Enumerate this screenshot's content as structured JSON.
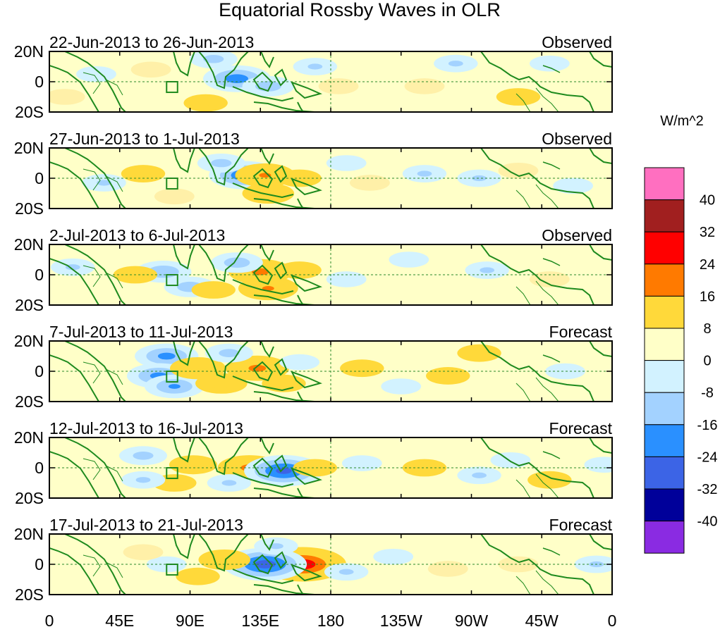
{
  "chart_data": {
    "type": "heatmap",
    "title": "Equatorial Rossby Waves in OLR",
    "x_tick_labels": [
      "0",
      "45E",
      "90E",
      "135E",
      "180",
      "135W",
      "90W",
      "45W",
      "0"
    ],
    "y_tick_labels": [
      "20N",
      "0",
      "20S"
    ],
    "xlim_degrees_east": [
      0,
      360
    ],
    "ylim_degrees_north": [
      -20,
      20
    ],
    "colorbar": {
      "unit": "W/m^2",
      "labels": [
        "40",
        "32",
        "24",
        "16",
        "8",
        "0",
        "-8",
        "-16",
        "-24",
        "-32",
        "-40"
      ],
      "bin_colors": [
        "#ff6fc0",
        "#a11f1f",
        "#ff0000",
        "#ff7a00",
        "#ffd93a",
        "#ffffc8",
        "#d2f2ff",
        "#a3d2ff",
        "#2a90ff",
        "#3c64e6",
        "#00009a",
        "#8a2be2"
      ]
    },
    "panels": [
      {
        "date_range": "22-Jun-2013 to 26-Jun-2013",
        "kind": "Observed",
        "anomalies": [
          {
            "lon": 120,
            "lat": 2,
            "value": -20
          },
          {
            "lon": 140,
            "lat": -3,
            "value": -12
          },
          {
            "lon": 105,
            "lat": 15,
            "value": -10
          },
          {
            "lon": 100,
            "lat": -14,
            "value": 8
          },
          {
            "lon": 170,
            "lat": 10,
            "value": -8
          },
          {
            "lon": 185,
            "lat": -3,
            "value": 6
          },
          {
            "lon": 65,
            "lat": 8,
            "value": 6
          },
          {
            "lon": 30,
            "lat": 5,
            "value": -6
          },
          {
            "lon": 240,
            "lat": -3,
            "value": 6
          },
          {
            "lon": 260,
            "lat": 12,
            "value": -8
          },
          {
            "lon": 300,
            "lat": -10,
            "value": 8
          },
          {
            "lon": 320,
            "lat": 12,
            "value": -6
          },
          {
            "lon": 10,
            "lat": -10,
            "value": 6
          }
        ]
      },
      {
        "date_range": "27-Jun-2013 to 1-Jul-2013",
        "kind": "Observed",
        "anomalies": [
          {
            "lon": 125,
            "lat": 2,
            "value": -22
          },
          {
            "lon": 138,
            "lat": 2,
            "value": 16
          },
          {
            "lon": 140,
            "lat": -10,
            "value": 12
          },
          {
            "lon": 110,
            "lat": 10,
            "value": -10
          },
          {
            "lon": 160,
            "lat": 0,
            "value": 8
          },
          {
            "lon": 60,
            "lat": 3,
            "value": 8
          },
          {
            "lon": 35,
            "lat": -3,
            "value": -8
          },
          {
            "lon": 190,
            "lat": 10,
            "value": -6
          },
          {
            "lon": 205,
            "lat": -3,
            "value": 6
          },
          {
            "lon": 240,
            "lat": 3,
            "value": -8
          },
          {
            "lon": 275,
            "lat": 0,
            "value": -8
          },
          {
            "lon": 300,
            "lat": 5,
            "value": 6
          },
          {
            "lon": 335,
            "lat": -5,
            "value": -6
          },
          {
            "lon": 80,
            "lat": -12,
            "value": 6
          }
        ]
      },
      {
        "date_range": "2-Jul-2013 to 6-Jul-2013",
        "kind": "Observed",
        "anomalies": [
          {
            "lon": 135,
            "lat": 2,
            "value": 18
          },
          {
            "lon": 140,
            "lat": -9,
            "value": 16
          },
          {
            "lon": 120,
            "lat": 8,
            "value": -12
          },
          {
            "lon": 73,
            "lat": 2,
            "value": -14
          },
          {
            "lon": 90,
            "lat": -8,
            "value": -12
          },
          {
            "lon": 55,
            "lat": 0,
            "value": 8
          },
          {
            "lon": 105,
            "lat": -10,
            "value": 8
          },
          {
            "lon": 160,
            "lat": 3,
            "value": 8
          },
          {
            "lon": 190,
            "lat": -3,
            "value": -6
          },
          {
            "lon": 230,
            "lat": 10,
            "value": -6
          },
          {
            "lon": 280,
            "lat": 3,
            "value": -8
          },
          {
            "lon": 320,
            "lat": -3,
            "value": 6
          },
          {
            "lon": 15,
            "lat": 5,
            "value": -8
          }
        ]
      },
      {
        "date_range": "7-Jul-2013 to 11-Jul-2013",
        "kind": "Forecast",
        "anomalies": [
          {
            "lon": 133,
            "lat": 2,
            "value": 18
          },
          {
            "lon": 75,
            "lat": 10,
            "value": -18
          },
          {
            "lon": 70,
            "lat": -3,
            "value": -18
          },
          {
            "lon": 80,
            "lat": -10,
            "value": -16
          },
          {
            "lon": 95,
            "lat": 2,
            "value": 14
          },
          {
            "lon": 110,
            "lat": -8,
            "value": 12
          },
          {
            "lon": 115,
            "lat": 12,
            "value": -10
          },
          {
            "lon": 150,
            "lat": -8,
            "value": 8
          },
          {
            "lon": 160,
            "lat": 6,
            "value": -6
          },
          {
            "lon": 200,
            "lat": 2,
            "value": 8
          },
          {
            "lon": 225,
            "lat": -10,
            "value": -6
          },
          {
            "lon": 255,
            "lat": -3,
            "value": 8
          },
          {
            "lon": 275,
            "lat": 12,
            "value": 8
          },
          {
            "lon": 330,
            "lat": 0,
            "value": -6
          }
        ]
      },
      {
        "date_range": "12-Jul-2013 to 16-Jul-2013",
        "kind": "Forecast",
        "anomalies": [
          {
            "lon": 128,
            "lat": 0,
            "value": 18
          },
          {
            "lon": 150,
            "lat": -2,
            "value": -26
          },
          {
            "lon": 92,
            "lat": 2,
            "value": 10
          },
          {
            "lon": 80,
            "lat": -10,
            "value": 8
          },
          {
            "lon": 60,
            "lat": 8,
            "value": -10
          },
          {
            "lon": 60,
            "lat": -8,
            "value": -8
          },
          {
            "lon": 115,
            "lat": -10,
            "value": -8
          },
          {
            "lon": 170,
            "lat": 0,
            "value": 8
          },
          {
            "lon": 200,
            "lat": 3,
            "value": -6
          },
          {
            "lon": 240,
            "lat": 0,
            "value": 8
          },
          {
            "lon": 275,
            "lat": -5,
            "value": -8
          },
          {
            "lon": 295,
            "lat": 5,
            "value": -6
          },
          {
            "lon": 320,
            "lat": -8,
            "value": 8
          },
          {
            "lon": 355,
            "lat": 2,
            "value": -6
          }
        ]
      },
      {
        "date_range": "17-Jul-2013 to 21-Jul-2013",
        "kind": "Forecast",
        "anomalies": [
          {
            "lon": 162,
            "lat": 0,
            "value": 30
          },
          {
            "lon": 138,
            "lat": 0,
            "value": -28
          },
          {
            "lon": 112,
            "lat": 3,
            "value": 12
          },
          {
            "lon": 95,
            "lat": -8,
            "value": 8
          },
          {
            "lon": 75,
            "lat": 0,
            "value": -6
          },
          {
            "lon": 60,
            "lat": 8,
            "value": 6
          },
          {
            "lon": 145,
            "lat": 12,
            "value": -8
          },
          {
            "lon": 190,
            "lat": -5,
            "value": -8
          },
          {
            "lon": 220,
            "lat": 5,
            "value": -6
          },
          {
            "lon": 255,
            "lat": -3,
            "value": 6
          },
          {
            "lon": 300,
            "lat": 0,
            "value": 6
          },
          {
            "lon": 350,
            "lat": 0,
            "value": -8
          }
        ]
      }
    ],
    "box_marker": {
      "lon_range": [
        75,
        82
      ],
      "lat_range": [
        -7,
        0
      ]
    }
  }
}
